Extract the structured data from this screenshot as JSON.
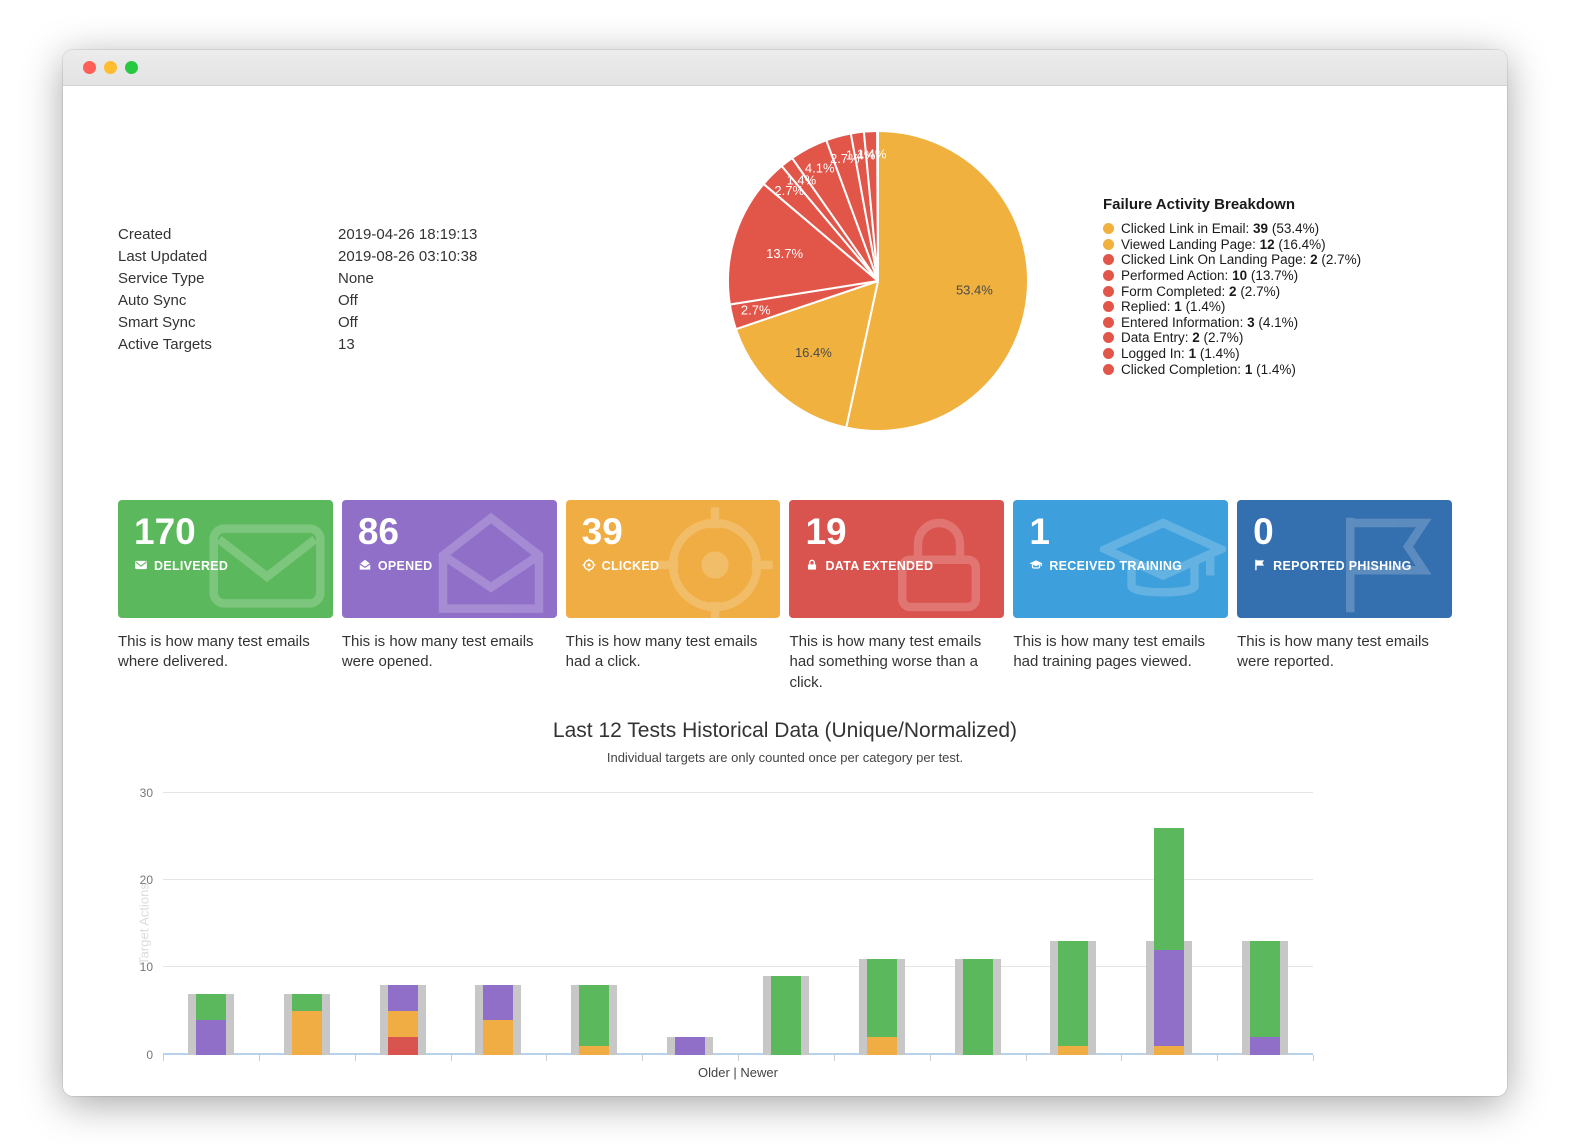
{
  "window": {
    "buttons": [
      {
        "name": "close",
        "color": "#FF5F57"
      },
      {
        "name": "minimize",
        "color": "#FEBC2E"
      },
      {
        "name": "zoom",
        "color": "#28C840"
      }
    ]
  },
  "meta": {
    "rows": [
      {
        "label": "Created",
        "value": "2019-04-26 18:19:13"
      },
      {
        "label": "Last Updated",
        "value": "2019-08-26 03:10:38"
      },
      {
        "label": "Service Type",
        "value": "None"
      },
      {
        "label": "Auto Sync",
        "value": "Off"
      },
      {
        "label": "Smart Sync",
        "value": "Off"
      },
      {
        "label": "Active Targets",
        "value": "13"
      }
    ]
  },
  "cards": [
    {
      "value": "170",
      "label": "DELIVERED",
      "desc": "This is how many test emails where delivered.",
      "color": "#5CB85C",
      "icon": "envelope-icon"
    },
    {
      "value": "86",
      "label": "OPENED",
      "desc": "This is how many test emails were opened.",
      "color": "#8F6FC8",
      "icon": "envelope-open-icon"
    },
    {
      "value": "39",
      "label": "CLICKED",
      "desc": "This is how many test emails had a click.",
      "color": "#EFAD43",
      "icon": "crosshair-icon"
    },
    {
      "value": "19",
      "label": "DATA EXTENDED",
      "desc": "This is how many test emails had something worse than a click.",
      "color": "#D9534F",
      "icon": "lock-icon"
    },
    {
      "value": "1",
      "label": "RECEIVED TRAINING",
      "desc": "This is how many test emails had training pages viewed.",
      "color": "#3D9FDB",
      "icon": "graduation-cap-icon"
    },
    {
      "value": "0",
      "label": "REPORTED PHISHING",
      "desc": "This is how many test emails were reported.",
      "color": "#3470AF",
      "icon": "flag-icon"
    }
  ],
  "chart_data": [
    {
      "type": "pie",
      "title": "Failure Activity Breakdown",
      "legend_position": "right",
      "slices": [
        {
          "name": "Clicked Link in Email",
          "count": 39,
          "pct": 53.4,
          "color": "#F0B13E",
          "label_color": "#4a4a4a"
        },
        {
          "name": "Viewed Landing Page",
          "count": 12,
          "pct": 16.4,
          "color": "#F0B13E",
          "label_color": "#4a4a4a"
        },
        {
          "name": "Clicked Link On Landing Page",
          "count": 2,
          "pct": 2.7,
          "color": "#E2564A",
          "label_color": "#ffffff"
        },
        {
          "name": "Performed Action",
          "count": 10,
          "pct": 13.7,
          "color": "#E2564A",
          "label_color": "#ffffff"
        },
        {
          "name": "Form Completed",
          "count": 2,
          "pct": 2.7,
          "color": "#E2564A",
          "label_color": "#ffffff"
        },
        {
          "name": "Replied",
          "count": 1,
          "pct": 1.4,
          "color": "#E2564A",
          "label_color": "#ffffff"
        },
        {
          "name": "Entered Information",
          "count": 3,
          "pct": 4.1,
          "color": "#E2564A",
          "label_color": "#ffffff"
        },
        {
          "name": "Data Entry",
          "count": 2,
          "pct": 2.7,
          "color": "#E2564A",
          "label_color": "#ffffff"
        },
        {
          "name": "Logged In",
          "count": 1,
          "pct": 1.4,
          "color": "#E2564A",
          "label_color": "#ffffff"
        },
        {
          "name": "Clicked Completion",
          "count": 1,
          "pct": 1.4,
          "color": "#E2564A",
          "label_color": "#ffffff"
        }
      ]
    },
    {
      "type": "bar",
      "title": "Last 12 Tests Historical Data (Unique/Normalized)",
      "subtitle": "Individual targets are only counted once per category per test.",
      "xlabel": "Older | Newer",
      "ylabel": "Target Actions",
      "ylim": [
        0,
        30
      ],
      "yticks": [
        0,
        10,
        20,
        30
      ],
      "grid": true,
      "colors": {
        "targets": "#C7C7C7",
        "delivered": "#5CB85C",
        "opened": "#8F6FC8",
        "clicked": "#EFAD43",
        "data_extended": "#D9534F"
      },
      "tests": [
        {
          "targets": 7,
          "segments": [
            {
              "series": "opened",
              "value": 4
            },
            {
              "series": "delivered",
              "value": 3
            }
          ]
        },
        {
          "targets": 7,
          "segments": [
            {
              "series": "clicked",
              "value": 5
            },
            {
              "series": "delivered",
              "value": 2
            }
          ]
        },
        {
          "targets": 8,
          "segments": [
            {
              "series": "data_extended",
              "value": 2
            },
            {
              "series": "clicked",
              "value": 3
            },
            {
              "series": "opened",
              "value": 3
            }
          ]
        },
        {
          "targets": 8,
          "segments": [
            {
              "series": "clicked",
              "value": 4
            },
            {
              "series": "opened",
              "value": 4
            }
          ]
        },
        {
          "targets": 8,
          "segments": [
            {
              "series": "clicked",
              "value": 1
            },
            {
              "series": "delivered",
              "value": 7
            }
          ]
        },
        {
          "targets": 2,
          "segments": [
            {
              "series": "opened",
              "value": 2
            }
          ]
        },
        {
          "targets": 9,
          "segments": [
            {
              "series": "delivered",
              "value": 9
            }
          ]
        },
        {
          "targets": 11,
          "segments": [
            {
              "series": "clicked",
              "value": 2
            },
            {
              "series": "delivered",
              "value": 9
            }
          ]
        },
        {
          "targets": 11,
          "segments": [
            {
              "series": "delivered",
              "value": 11
            }
          ]
        },
        {
          "targets": 13,
          "segments": [
            {
              "series": "clicked",
              "value": 1
            },
            {
              "series": "delivered",
              "value": 12
            }
          ]
        },
        {
          "targets": 13,
          "segments": [
            {
              "series": "clicked",
              "value": 1
            },
            {
              "series": "opened",
              "value": 11
            },
            {
              "series": "delivered",
              "value": 14
            }
          ]
        },
        {
          "targets": 13,
          "segments": [
            {
              "series": "opened",
              "value": 2
            },
            {
              "series": "delivered",
              "value": 11
            }
          ]
        }
      ]
    }
  ]
}
